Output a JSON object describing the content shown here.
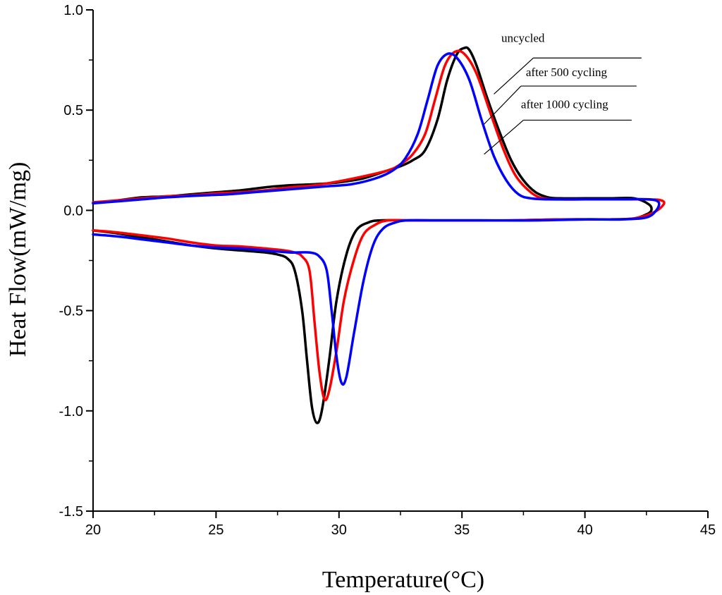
{
  "chart_data": {
    "type": "line",
    "title": "",
    "xlabel": "Temperature(°C)",
    "ylabel": "Heat Flow(mW/mg)",
    "xlim": [
      20,
      45
    ],
    "ylim": [
      -1.5,
      1.0
    ],
    "xticks": [
      20,
      25,
      30,
      35,
      40,
      45
    ],
    "xtick_labels": [
      "20",
      "25",
      "30",
      "35",
      "40",
      "45"
    ],
    "yticks": [
      -1.5,
      -1.0,
      -0.5,
      0.0,
      0.5,
      1.0
    ],
    "ytick_labels": [
      "-1.5",
      "-1.0",
      "-0.5",
      "0.0",
      "0.5",
      "1.0"
    ],
    "grid": false,
    "legend_placement": "top-right",
    "series": [
      {
        "name": "uncycled",
        "color": "#000000",
        "points": [
          [
            20,
            -0.1
          ],
          [
            21,
            -0.115
          ],
          [
            22,
            -0.135
          ],
          [
            23,
            -0.155
          ],
          [
            24,
            -0.175
          ],
          [
            25,
            -0.19
          ],
          [
            26,
            -0.2
          ],
          [
            27,
            -0.21
          ],
          [
            27.5,
            -0.22
          ],
          [
            27.9,
            -0.24
          ],
          [
            28.2,
            -0.3
          ],
          [
            28.5,
            -0.5
          ],
          [
            28.7,
            -0.75
          ],
          [
            28.9,
            -0.98
          ],
          [
            29.1,
            -1.06
          ],
          [
            29.3,
            -1.0
          ],
          [
            29.6,
            -0.75
          ],
          [
            29.9,
            -0.45
          ],
          [
            30.3,
            -0.22
          ],
          [
            30.7,
            -0.1
          ],
          [
            31.2,
            -0.06
          ],
          [
            31.7,
            -0.05
          ],
          [
            33,
            -0.05
          ],
          [
            35,
            -0.05
          ],
          [
            37,
            -0.05
          ],
          [
            39,
            -0.045
          ],
          [
            41,
            -0.045
          ],
          [
            42,
            -0.04
          ],
          [
            42.5,
            -0.02
          ],
          [
            42.7,
            0.0
          ],
          [
            42.6,
            0.03
          ],
          [
            42,
            0.06
          ],
          [
            41,
            0.06
          ],
          [
            40,
            0.06
          ],
          [
            39,
            0.06
          ],
          [
            38.5,
            0.065
          ],
          [
            38,
            0.09
          ],
          [
            37.5,
            0.15
          ],
          [
            37,
            0.25
          ],
          [
            36.5,
            0.4
          ],
          [
            36,
            0.57
          ],
          [
            35.6,
            0.72
          ],
          [
            35.3,
            0.8
          ],
          [
            35.1,
            0.81
          ],
          [
            34.8,
            0.78
          ],
          [
            34.4,
            0.65
          ],
          [
            34,
            0.45
          ],
          [
            33.5,
            0.3
          ],
          [
            33,
            0.25
          ],
          [
            32.5,
            0.22
          ],
          [
            32,
            0.2
          ],
          [
            31,
            0.16
          ],
          [
            30,
            0.14
          ],
          [
            29,
            0.13
          ],
          [
            28,
            0.125
          ],
          [
            27,
            0.115
          ],
          [
            26,
            0.1
          ],
          [
            25,
            0.09
          ],
          [
            24,
            0.08
          ],
          [
            23,
            0.07
          ],
          [
            22,
            0.065
          ],
          [
            21,
            0.05
          ],
          [
            20,
            0.035
          ]
        ]
      },
      {
        "name": "after 500 cycling",
        "color": "#ff0000",
        "points": [
          [
            20,
            -0.1
          ],
          [
            21,
            -0.11
          ],
          [
            22,
            -0.125
          ],
          [
            23,
            -0.14
          ],
          [
            24,
            -0.16
          ],
          [
            25,
            -0.175
          ],
          [
            26,
            -0.18
          ],
          [
            27,
            -0.19
          ],
          [
            27.8,
            -0.2
          ],
          [
            28.2,
            -0.21
          ],
          [
            28.5,
            -0.23
          ],
          [
            28.8,
            -0.3
          ],
          [
            29.0,
            -0.55
          ],
          [
            29.2,
            -0.8
          ],
          [
            29.4,
            -0.94
          ],
          [
            29.6,
            -0.9
          ],
          [
            29.9,
            -0.7
          ],
          [
            30.2,
            -0.45
          ],
          [
            30.6,
            -0.25
          ],
          [
            31.0,
            -0.12
          ],
          [
            31.5,
            -0.07
          ],
          [
            32.0,
            -0.05
          ],
          [
            33,
            -0.05
          ],
          [
            35,
            -0.05
          ],
          [
            37,
            -0.05
          ],
          [
            39,
            -0.045
          ],
          [
            41,
            -0.045
          ],
          [
            42,
            -0.04
          ],
          [
            42.8,
            -0.01
          ],
          [
            43.2,
            0.03
          ],
          [
            43.1,
            0.05
          ],
          [
            42.5,
            0.055
          ],
          [
            41,
            0.055
          ],
          [
            40,
            0.055
          ],
          [
            39,
            0.055
          ],
          [
            38.3,
            0.06
          ],
          [
            37.8,
            0.09
          ],
          [
            37.2,
            0.17
          ],
          [
            36.7,
            0.3
          ],
          [
            36.2,
            0.47
          ],
          [
            35.6,
            0.68
          ],
          [
            35.1,
            0.78
          ],
          [
            34.7,
            0.79
          ],
          [
            34.3,
            0.72
          ],
          [
            33.9,
            0.55
          ],
          [
            33.5,
            0.38
          ],
          [
            33,
            0.28
          ],
          [
            32.5,
            0.23
          ],
          [
            32,
            0.2
          ],
          [
            31,
            0.17
          ],
          [
            30,
            0.145
          ],
          [
            29,
            0.125
          ],
          [
            28,
            0.115
          ],
          [
            27,
            0.1
          ],
          [
            26,
            0.09
          ],
          [
            25,
            0.085
          ],
          [
            24,
            0.075
          ],
          [
            23,
            0.07
          ],
          [
            22,
            0.06
          ],
          [
            21,
            0.05
          ],
          [
            20,
            0.04
          ]
        ]
      },
      {
        "name": "after 1000 cycling",
        "color": "#0000ff",
        "points": [
          [
            20,
            -0.12
          ],
          [
            21,
            -0.13
          ],
          [
            22,
            -0.145
          ],
          [
            23,
            -0.16
          ],
          [
            24,
            -0.175
          ],
          [
            25,
            -0.185
          ],
          [
            26,
            -0.19
          ],
          [
            27,
            -0.2
          ],
          [
            28,
            -0.21
          ],
          [
            28.8,
            -0.21
          ],
          [
            29.2,
            -0.23
          ],
          [
            29.5,
            -0.3
          ],
          [
            29.7,
            -0.5
          ],
          [
            29.9,
            -0.73
          ],
          [
            30.1,
            -0.86
          ],
          [
            30.3,
            -0.83
          ],
          [
            30.6,
            -0.62
          ],
          [
            31.0,
            -0.35
          ],
          [
            31.4,
            -0.17
          ],
          [
            31.8,
            -0.09
          ],
          [
            32.3,
            -0.06
          ],
          [
            32.8,
            -0.05
          ],
          [
            34,
            -0.05
          ],
          [
            36,
            -0.05
          ],
          [
            38,
            -0.05
          ],
          [
            40,
            -0.045
          ],
          [
            41.5,
            -0.045
          ],
          [
            42.5,
            -0.035
          ],
          [
            42.9,
            0.0
          ],
          [
            43.0,
            0.04
          ],
          [
            42.6,
            0.055
          ],
          [
            41.5,
            0.055
          ],
          [
            40,
            0.055
          ],
          [
            38.5,
            0.055
          ],
          [
            37.8,
            0.06
          ],
          [
            37.3,
            0.08
          ],
          [
            36.8,
            0.15
          ],
          [
            36.3,
            0.27
          ],
          [
            35.8,
            0.45
          ],
          [
            35.3,
            0.65
          ],
          [
            34.8,
            0.76
          ],
          [
            34.4,
            0.78
          ],
          [
            34.0,
            0.72
          ],
          [
            33.6,
            0.55
          ],
          [
            33.2,
            0.38
          ],
          [
            32.7,
            0.26
          ],
          [
            32.2,
            0.2
          ],
          [
            31.5,
            0.16
          ],
          [
            30.5,
            0.13
          ],
          [
            29.5,
            0.12
          ],
          [
            28.5,
            0.11
          ],
          [
            27.5,
            0.1
          ],
          [
            26.5,
            0.09
          ],
          [
            25.5,
            0.08
          ],
          [
            24.5,
            0.075
          ],
          [
            23,
            0.065
          ],
          [
            22,
            0.055
          ],
          [
            21,
            0.045
          ],
          [
            20,
            0.035
          ]
        ]
      }
    ],
    "annotations": [
      {
        "text": "uncycled",
        "series": "uncycled",
        "text_x": 36.6,
        "text_y": 0.84,
        "line": [
          [
            36.3,
            0.58
          ],
          [
            37.9,
            0.76
          ]
        ],
        "underline_to_x": 42.3
      },
      {
        "text": "after 500 cycling",
        "series": "after 500 cycling",
        "text_x": 37.6,
        "text_y": 0.67,
        "line": [
          [
            35.9,
            0.43
          ],
          [
            37.4,
            0.62
          ]
        ],
        "underline_to_x": 42.1
      },
      {
        "text": "after 1000 cycling",
        "series": "after 1000 cycling",
        "text_x": 37.4,
        "text_y": 0.51,
        "line": [
          [
            35.9,
            0.28
          ],
          [
            37.5,
            0.45
          ]
        ],
        "underline_to_x": 41.9
      }
    ]
  }
}
